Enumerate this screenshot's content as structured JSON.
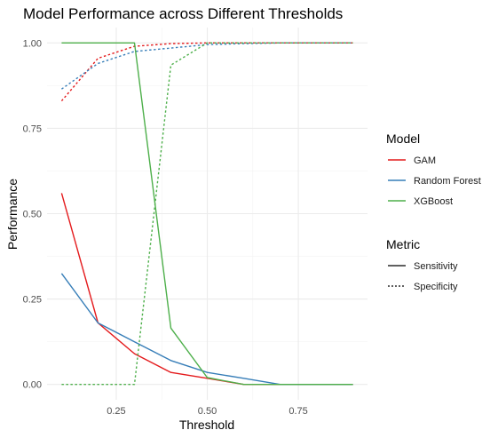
{
  "chart_data": {
    "type": "line",
    "title": "Model Performance across Different Thresholds",
    "xlabel": "Threshold",
    "ylabel": "Performance",
    "xlim": [
      0.06,
      0.94
    ],
    "ylim": [
      -0.045,
      1.045
    ],
    "x_ticks": [
      0.25,
      0.5,
      0.75
    ],
    "x_tick_labels": [
      "0.25",
      "0.50",
      "0.75"
    ],
    "y_ticks": [
      0,
      0.25,
      0.5,
      0.75,
      1.0
    ],
    "y_tick_labels": [
      "0.00",
      "0.25",
      "0.50",
      "0.75",
      "1.00"
    ],
    "grid": true,
    "legend_position": "right",
    "x": [
      0.1,
      0.2,
      0.3,
      0.4,
      0.5,
      0.6,
      0.7,
      0.8,
      0.9
    ],
    "series": [
      {
        "name": "GAM",
        "metric": "Sensitivity",
        "color": "#e41a1c",
        "dash": "solid",
        "values": [
          0.56,
          0.18,
          0.09,
          0.035,
          0.018,
          0.0,
          0.0,
          0.0,
          0.0
        ]
      },
      {
        "name": "GAM",
        "metric": "Specificity",
        "color": "#e41a1c",
        "dash": "dotted",
        "values": [
          0.83,
          0.955,
          0.99,
          0.998,
          1.0,
          1.0,
          1.0,
          1.0,
          1.0
        ]
      },
      {
        "name": "Random Forest",
        "metric": "Sensitivity",
        "color": "#377eb8",
        "dash": "solid",
        "values": [
          0.325,
          0.18,
          0.125,
          0.07,
          0.035,
          0.018,
          0.0,
          0.0,
          0.0
        ]
      },
      {
        "name": "Random Forest",
        "metric": "Specificity",
        "color": "#377eb8",
        "dash": "dotted",
        "values": [
          0.865,
          0.94,
          0.975,
          0.985,
          0.995,
          0.998,
          1.0,
          1.0,
          1.0
        ]
      },
      {
        "name": "XGBoost",
        "metric": "Sensitivity",
        "color": "#4daf4a",
        "dash": "solid",
        "values": [
          1.0,
          1.0,
          1.0,
          0.165,
          0.02,
          0.0,
          0.0,
          0.0,
          0.0
        ]
      },
      {
        "name": "XGBoost",
        "metric": "Specificity",
        "color": "#4daf4a",
        "dash": "dotted",
        "values": [
          0.0,
          0.0,
          0.0,
          0.935,
          1.0,
          1.0,
          1.0,
          1.0,
          1.0
        ]
      }
    ],
    "legend": {
      "model_title": "Model",
      "models": [
        {
          "label": "GAM",
          "color": "#e41a1c"
        },
        {
          "label": "Random Forest",
          "color": "#377eb8"
        },
        {
          "label": "XGBoost",
          "color": "#4daf4a"
        }
      ],
      "metric_title": "Metric",
      "metrics": [
        {
          "label": "Sensitivity",
          "dash": "solid"
        },
        {
          "label": "Specificity",
          "dash": "dotted"
        }
      ]
    }
  }
}
